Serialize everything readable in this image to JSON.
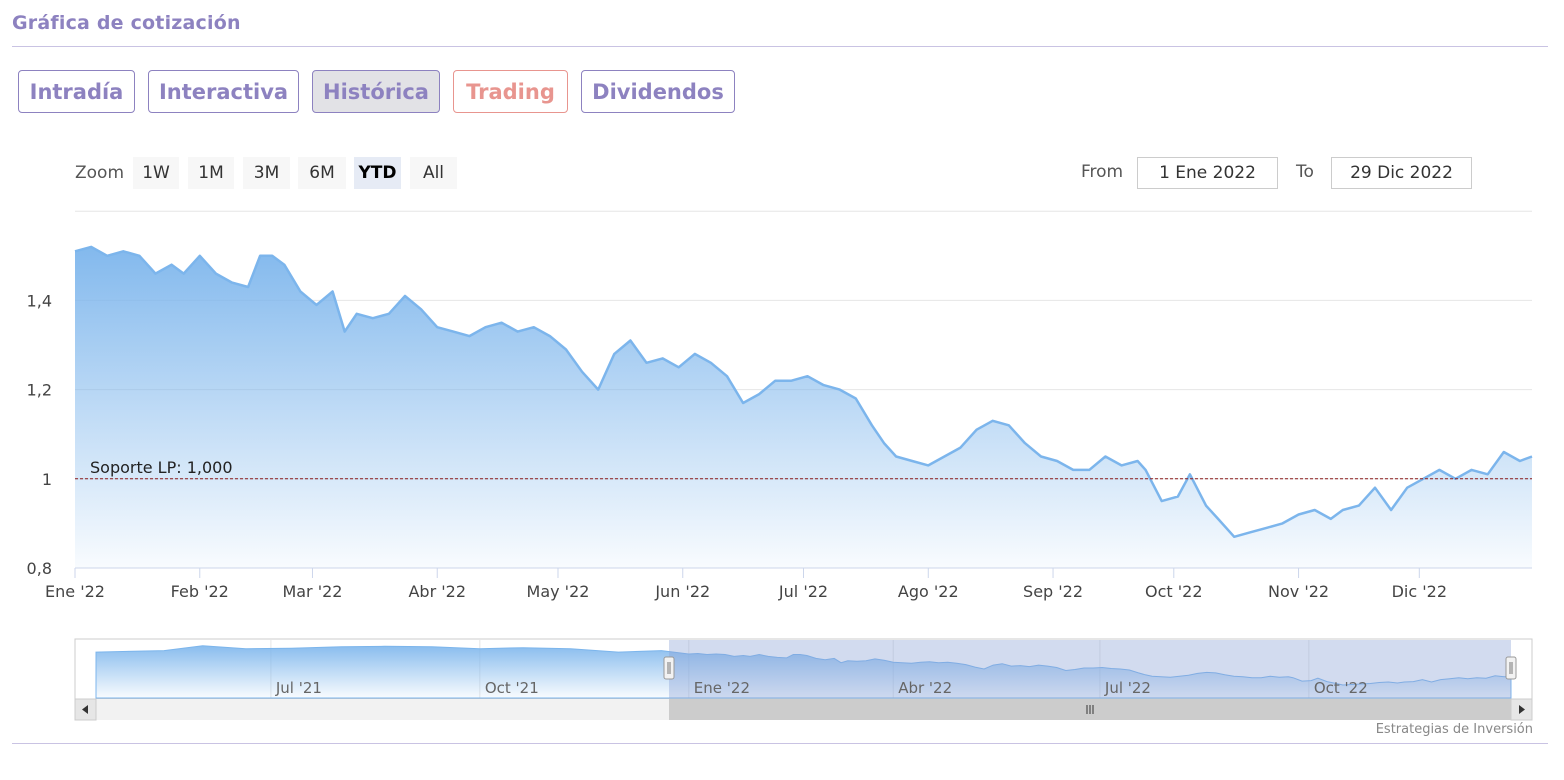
{
  "header": {
    "title": "Gráfica de cotización"
  },
  "tabs": [
    {
      "label": "Intradía"
    },
    {
      "label": "Interactiva"
    },
    {
      "label": "Histórica",
      "active": true
    },
    {
      "label": "Trading"
    },
    {
      "label": "Dividendos"
    }
  ],
  "colors": {
    "accent": "#8d82c0",
    "trading": "#e8958f",
    "series": "#7cb5ec",
    "support_line": "#8b1a1a"
  },
  "zoom": {
    "label": "Zoom",
    "buttons": [
      "1W",
      "1M",
      "3M",
      "6M",
      "YTD",
      "All"
    ],
    "selected": "YTD"
  },
  "range": {
    "from_label": "From",
    "from_value": "1 Ene 2022",
    "to_label": "To",
    "to_value": "29 Dic 2022"
  },
  "credit": "Estrategias de Inversión",
  "navigator": {
    "tick_labels": [
      "Jul '21",
      "Oct '21",
      "Ene '22",
      "Abr '22",
      "Jul '22",
      "Oct '22"
    ],
    "selected_range": [
      "2022-01-01",
      "2022-12-29"
    ]
  },
  "chart_data": {
    "type": "area",
    "xlabel": "",
    "ylabel": "",
    "x_ticks": [
      "Ene '22",
      "Feb '22",
      "Mar '22",
      "Abr '22",
      "May '22",
      "Jun '22",
      "Jul '22",
      "Ago '22",
      "Sep '22",
      "Oct '22",
      "Nov '22",
      "Dic '22"
    ],
    "y_ticks": [
      "0,8",
      "1",
      "1,2",
      "1,4"
    ],
    "ylim": [
      0.8,
      1.6
    ],
    "xlim": [
      "2022-01-01",
      "2022-12-29"
    ],
    "grid": true,
    "plot_line": {
      "label": "Soporte LP: 1,000",
      "value": 1.0
    },
    "series": [
      {
        "x": [
          "2022-01-01",
          "2022-01-05",
          "2022-01-09",
          "2022-01-13",
          "2022-01-17",
          "2022-01-21",
          "2022-01-25",
          "2022-01-28",
          "2022-02-01",
          "2022-02-05",
          "2022-02-09",
          "2022-02-13",
          "2022-02-16",
          "2022-02-19",
          "2022-02-22",
          "2022-02-26",
          "2022-03-02",
          "2022-03-06",
          "2022-03-09",
          "2022-03-12",
          "2022-03-16",
          "2022-03-20",
          "2022-03-24",
          "2022-03-28",
          "2022-04-01",
          "2022-04-05",
          "2022-04-09",
          "2022-04-13",
          "2022-04-17",
          "2022-04-21",
          "2022-04-25",
          "2022-04-29",
          "2022-05-03",
          "2022-05-07",
          "2022-05-11",
          "2022-05-15",
          "2022-05-19",
          "2022-05-23",
          "2022-05-27",
          "2022-05-31",
          "2022-06-04",
          "2022-06-08",
          "2022-06-12",
          "2022-06-16",
          "2022-06-20",
          "2022-06-24",
          "2022-06-28",
          "2022-07-02",
          "2022-07-06",
          "2022-07-10",
          "2022-07-14",
          "2022-07-18",
          "2022-07-21",
          "2022-07-24",
          "2022-07-28",
          "2022-08-01",
          "2022-08-05",
          "2022-08-09",
          "2022-08-13",
          "2022-08-17",
          "2022-08-21",
          "2022-08-25",
          "2022-08-29",
          "2022-09-02",
          "2022-09-06",
          "2022-09-10",
          "2022-09-14",
          "2022-09-18",
          "2022-09-22",
          "2022-09-24",
          "2022-09-28",
          "2022-10-02",
          "2022-10-05",
          "2022-10-09",
          "2022-10-12",
          "2022-10-16",
          "2022-10-20",
          "2022-10-24",
          "2022-10-28",
          "2022-11-01",
          "2022-11-05",
          "2022-11-09",
          "2022-11-12",
          "2022-11-16",
          "2022-11-20",
          "2022-11-24",
          "2022-11-28",
          "2022-12-02",
          "2022-12-06",
          "2022-12-10",
          "2022-12-14",
          "2022-12-18",
          "2022-12-22",
          "2022-12-26",
          "2022-12-29"
        ],
        "y": [
          1.51,
          1.52,
          1.5,
          1.51,
          1.5,
          1.46,
          1.48,
          1.46,
          1.5,
          1.46,
          1.44,
          1.43,
          1.5,
          1.5,
          1.48,
          1.42,
          1.39,
          1.42,
          1.33,
          1.37,
          1.36,
          1.37,
          1.41,
          1.38,
          1.34,
          1.33,
          1.32,
          1.34,
          1.35,
          1.33,
          1.34,
          1.32,
          1.29,
          1.24,
          1.2,
          1.28,
          1.31,
          1.26,
          1.27,
          1.25,
          1.28,
          1.26,
          1.23,
          1.17,
          1.19,
          1.22,
          1.22,
          1.23,
          1.21,
          1.2,
          1.18,
          1.12,
          1.08,
          1.05,
          1.04,
          1.03,
          1.05,
          1.07,
          1.11,
          1.13,
          1.12,
          1.08,
          1.05,
          1.04,
          1.02,
          1.02,
          1.05,
          1.03,
          1.04,
          1.02,
          0.95,
          0.96,
          1.01,
          0.94,
          0.91,
          0.87,
          0.88,
          0.89,
          0.9,
          0.92,
          0.93,
          0.91,
          0.93,
          0.94,
          0.98,
          0.93,
          0.98,
          1.0,
          1.02,
          1.0,
          1.02,
          1.01,
          1.06,
          1.04,
          1.05
        ]
      }
    ]
  }
}
